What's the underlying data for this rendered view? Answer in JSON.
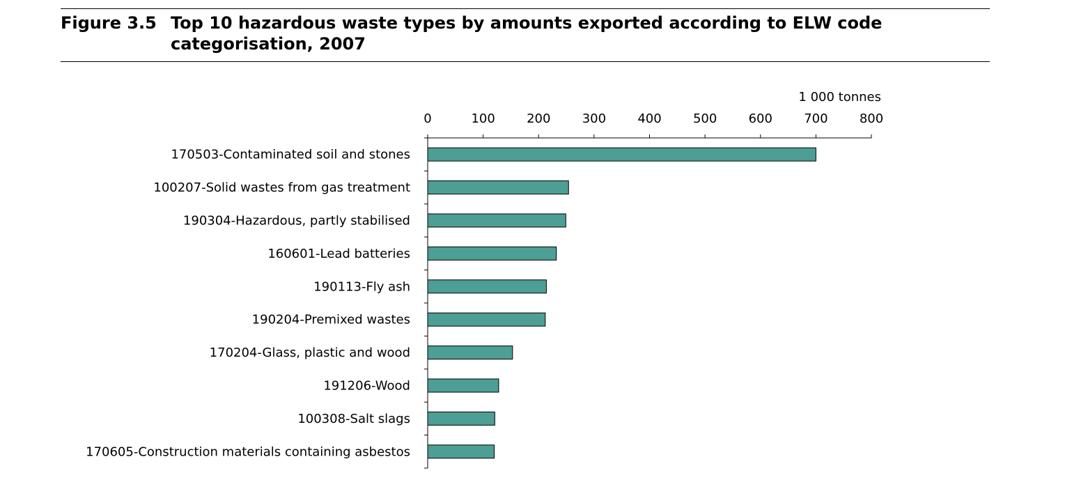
{
  "figure": {
    "number": "Figure 3.5",
    "title": "Top 10 hazardous waste types by amounts exported according to ELW code categorisation, 2007"
  },
  "chart_data": {
    "type": "bar",
    "orientation": "horizontal",
    "unit_label": "1 000 tonnes",
    "xlim": [
      0,
      800
    ],
    "ticks": [
      0,
      100,
      200,
      300,
      400,
      500,
      600,
      700,
      800
    ],
    "bar_color": "#4d9e94",
    "grid": false,
    "categories": [
      "170503-Contaminated soil and stones",
      "100207-Solid wastes from gas treatment",
      "190304-Hazardous, partly stabilised",
      "160601-Lead batteries",
      "190113-Fly ash",
      "190204-Premixed wastes",
      "170204-Glass, plastic and wood",
      "191206-Wood",
      "100308-Salt slags",
      "170605-Construction materials containing asbestos"
    ],
    "values": [
      700,
      254,
      249,
      232,
      214,
      212,
      153,
      128,
      121,
      120
    ]
  }
}
